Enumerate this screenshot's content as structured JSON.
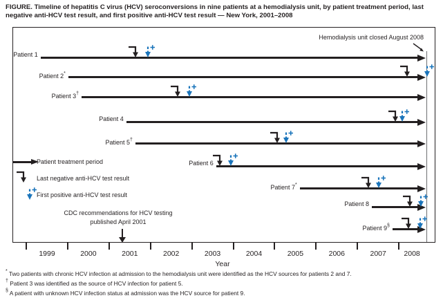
{
  "title": "FIGURE. Timeline of hepatitis C virus (HCV) seroconversions in nine patients at a hemodialysis unit, by patient treatment period, last negative anti-HCV test result, and first positive anti-HCV test result — New York, 2001–2008",
  "colors": {
    "black": "#231f20",
    "blue": "#1b75bb"
  },
  "annotation": {
    "unit_closed": "Hemodialysis unit closed August 2008"
  },
  "legend": {
    "treatment": "Patient treatment period",
    "last_negative": "Last negative anti-HCV test result",
    "first_positive": "First positive anti-HCV test result"
  },
  "cdc_note": {
    "line1": "CDC recommendations for HCV testing",
    "line2": "published April 2001"
  },
  "axis": {
    "label": "Year",
    "years": [
      "1999",
      "2000",
      "2001",
      "2002",
      "2003",
      "2004",
      "2005",
      "2006",
      "2007",
      "2008"
    ]
  },
  "footnotes": [
    {
      "symbol": "*",
      "text": "Two patients with chronic HCV infection at admission to the hemodialysis unit were identified as the HCV sources for patients 2 and 7."
    },
    {
      "symbol": "†",
      "text": "Patient 3 was identified as the source of HCV infection for patient 5."
    },
    {
      "symbol": "§",
      "text": "A patient with unknown HCV infection status at admission was the HCV source for patient 9."
    }
  ],
  "chart_data": {
    "type": "timeline",
    "title": "Timeline of HCV seroconversions in nine patients at a hemodialysis unit, New York, 2001–2008",
    "xlabel": "Year",
    "x_range": [
      1999,
      2008.9
    ],
    "grid": false,
    "legend_position": "middle-left",
    "unit_closed_year": 2008.66,
    "unit_closed_label": "Hemodialysis unit closed August 2008",
    "cdc_recommendation_year": 2001.3,
    "treatment_end_all": "August 2008 (hemodialysis unit closed)",
    "patients": [
      {
        "label": "Patient 1",
        "footnote_symbol": "",
        "treatment_start": 1999.33,
        "last_negative": 2001.62,
        "first_positive": 2001.92
      },
      {
        "label": "Patient 2",
        "footnote_symbol": "*",
        "treatment_start": 2000.0,
        "last_negative": 2008.18,
        "first_positive": 2008.66
      },
      {
        "label": "Patient 3",
        "footnote_symbol": "†",
        "treatment_start": 2000.32,
        "last_negative": 2002.64,
        "first_positive": 2002.92
      },
      {
        "label": "Patient 4",
        "footnote_symbol": "",
        "treatment_start": 2001.4,
        "last_negative": 2007.9,
        "first_positive": 2008.06
      },
      {
        "label": "Patient 5",
        "footnote_symbol": "†",
        "treatment_start": 2001.62,
        "last_negative": 2005.04,
        "first_positive": 2005.26
      },
      {
        "label": "Patient 6",
        "footnote_symbol": "",
        "treatment_start": 2003.57,
        "last_negative": 2003.66,
        "first_positive": 2003.92
      },
      {
        "label": "Patient 7",
        "footnote_symbol": "*",
        "treatment_start": 2005.59,
        "last_negative": 2007.25,
        "first_positive": 2007.5
      },
      {
        "label": "Patient 8",
        "footnote_symbol": "",
        "treatment_start": 2007.33,
        "last_negative": 2008.25,
        "first_positive": 2008.52
      },
      {
        "label": "Patient 9",
        "footnote_symbol": "§",
        "treatment_start": 2007.83,
        "last_negative": 2008.21,
        "first_positive": 2008.5
      }
    ]
  }
}
